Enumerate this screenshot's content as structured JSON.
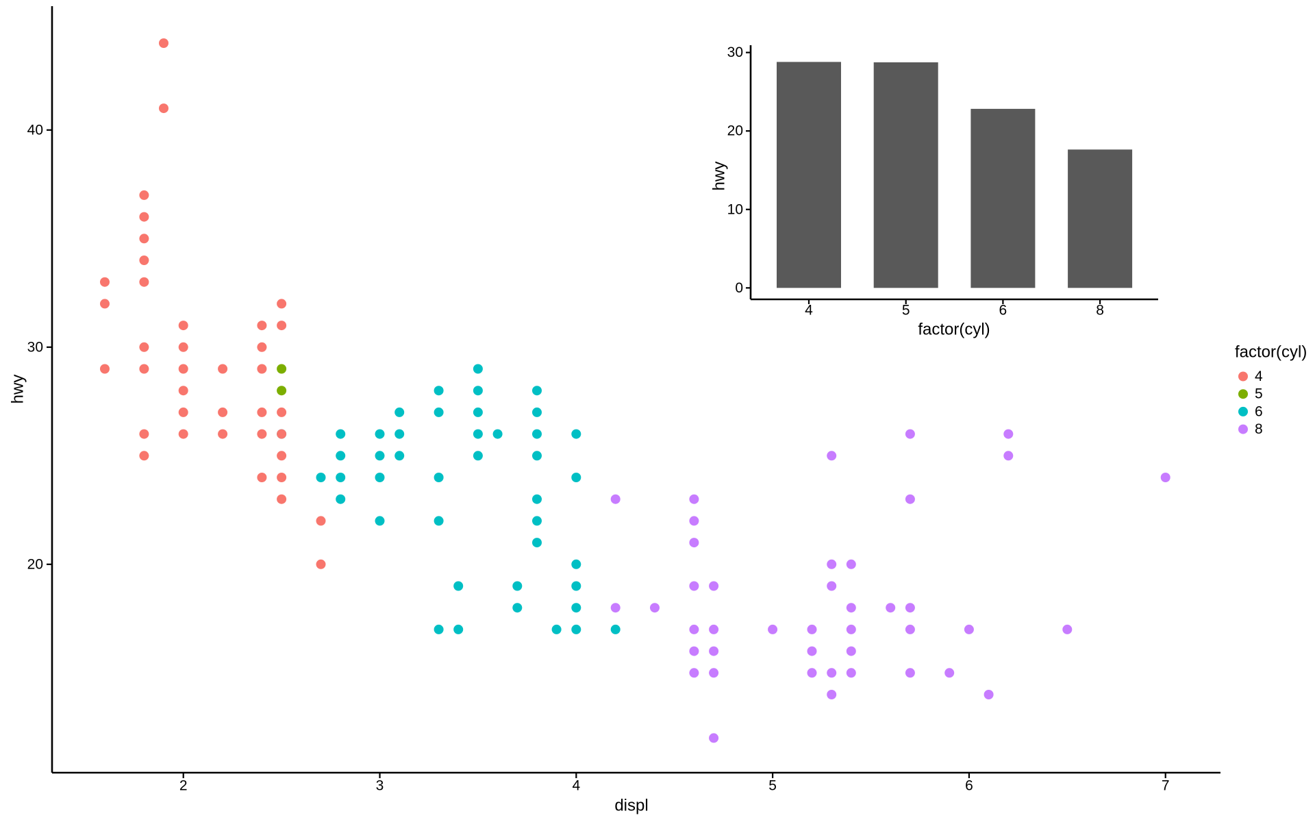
{
  "window": {
    "background": "#ffffff"
  },
  "colors": {
    "cyl4": "#F8766D",
    "cyl5": "#7CAE00",
    "cyl6": "#00BFC4",
    "cyl8": "#C77CFF",
    "bar_fill": "#595959",
    "axis_line": "#000000",
    "text": "#000000"
  },
  "legend": {
    "title": "factor(cyl)",
    "position": "right",
    "entries": [
      {
        "label": "4",
        "color": "#F8766D"
      },
      {
        "label": "5",
        "color": "#7CAE00"
      },
      {
        "label": "6",
        "color": "#00BFC4"
      },
      {
        "label": "8",
        "color": "#C77CFF"
      }
    ]
  },
  "chart_data": [
    {
      "id": "main-scatter",
      "type": "scatter",
      "title": "",
      "xlabel": "displ",
      "ylabel": "hwy",
      "x_ticks": [
        "2",
        "3",
        "4",
        "5",
        "6",
        "7"
      ],
      "y_ticks": [
        "20",
        "30",
        "40"
      ],
      "xlim": [
        1.33,
        7.27
      ],
      "ylim": [
        10.4,
        45.7
      ],
      "grid": false,
      "color_by": "factor(cyl)",
      "series": [
        {
          "name": "6",
          "color": "#00BFC4",
          "points": [
            [
              2.5,
              26
            ],
            [
              2.7,
              24
            ],
            [
              2.8,
              26
            ],
            [
              2.8,
              25
            ],
            [
              2.8,
              24
            ],
            [
              2.8,
              23
            ],
            [
              3.0,
              26
            ],
            [
              3.0,
              25
            ],
            [
              3.0,
              24
            ],
            [
              3.0,
              22
            ],
            [
              3.1,
              27
            ],
            [
              3.1,
              26
            ],
            [
              3.1,
              25
            ],
            [
              3.3,
              28
            ],
            [
              3.3,
              27
            ],
            [
              3.3,
              24
            ],
            [
              3.3,
              22
            ],
            [
              3.3,
              17
            ],
            [
              3.4,
              19
            ],
            [
              3.4,
              17
            ],
            [
              3.5,
              29
            ],
            [
              3.5,
              28
            ],
            [
              3.5,
              27
            ],
            [
              3.5,
              26
            ],
            [
              3.5,
              25
            ],
            [
              3.6,
              26
            ],
            [
              3.7,
              19
            ],
            [
              3.7,
              18
            ],
            [
              3.8,
              28
            ],
            [
              3.8,
              27
            ],
            [
              3.8,
              26
            ],
            [
              3.8,
              25
            ],
            [
              3.8,
              23
            ],
            [
              3.8,
              22
            ],
            [
              3.8,
              21
            ],
            [
              3.9,
              17
            ],
            [
              4.0,
              26
            ],
            [
              4.0,
              24
            ],
            [
              4.0,
              20
            ],
            [
              4.0,
              19
            ],
            [
              4.0,
              18
            ],
            [
              4.0,
              17
            ],
            [
              4.2,
              17
            ]
          ]
        },
        {
          "name": "4",
          "color": "#F8766D",
          "points": [
            [
              1.6,
              33
            ],
            [
              1.6,
              32
            ],
            [
              1.6,
              29
            ],
            [
              1.8,
              37
            ],
            [
              1.8,
              36
            ],
            [
              1.8,
              35
            ],
            [
              1.8,
              34
            ],
            [
              1.8,
              33
            ],
            [
              1.8,
              30
            ],
            [
              1.8,
              29
            ],
            [
              1.8,
              26
            ],
            [
              1.8,
              25
            ],
            [
              1.9,
              44
            ],
            [
              1.9,
              41
            ],
            [
              2.0,
              31
            ],
            [
              2.0,
              30
            ],
            [
              2.0,
              29
            ],
            [
              2.0,
              28
            ],
            [
              2.0,
              27
            ],
            [
              2.0,
              26
            ],
            [
              2.2,
              29
            ],
            [
              2.2,
              27
            ],
            [
              2.2,
              26
            ],
            [
              2.4,
              31
            ],
            [
              2.4,
              30
            ],
            [
              2.4,
              29
            ],
            [
              2.4,
              27
            ],
            [
              2.4,
              26
            ],
            [
              2.4,
              24
            ],
            [
              2.5,
              32
            ],
            [
              2.5,
              31
            ],
            [
              2.5,
              27
            ],
            [
              2.5,
              26
            ],
            [
              2.5,
              25
            ],
            [
              2.5,
              24
            ],
            [
              2.5,
              23
            ],
            [
              2.7,
              22
            ],
            [
              2.7,
              20
            ]
          ]
        },
        {
          "name": "5",
          "color": "#7CAE00",
          "points": [
            [
              2.5,
              29
            ],
            [
              2.5,
              28
            ]
          ]
        },
        {
          "name": "8",
          "color": "#C77CFF",
          "points": [
            [
              4.2,
              23
            ],
            [
              4.2,
              18
            ],
            [
              4.4,
              18
            ],
            [
              4.6,
              23
            ],
            [
              4.6,
              22
            ],
            [
              4.6,
              21
            ],
            [
              4.6,
              19
            ],
            [
              4.6,
              17
            ],
            [
              4.6,
              16
            ],
            [
              4.6,
              15
            ],
            [
              4.7,
              19
            ],
            [
              4.7,
              17
            ],
            [
              4.7,
              16
            ],
            [
              4.7,
              15
            ],
            [
              4.7,
              12
            ],
            [
              5.0,
              17
            ],
            [
              5.2,
              17
            ],
            [
              5.2,
              16
            ],
            [
              5.2,
              15
            ],
            [
              5.3,
              25
            ],
            [
              5.3,
              20
            ],
            [
              5.3,
              19
            ],
            [
              5.3,
              15
            ],
            [
              5.3,
              14
            ],
            [
              5.4,
              20
            ],
            [
              5.4,
              18
            ],
            [
              5.4,
              17
            ],
            [
              5.4,
              16
            ],
            [
              5.4,
              15
            ],
            [
              5.6,
              18
            ],
            [
              5.7,
              26
            ],
            [
              5.7,
              23
            ],
            [
              5.7,
              18
            ],
            [
              5.7,
              17
            ],
            [
              5.7,
              15
            ],
            [
              5.9,
              15
            ],
            [
              6.0,
              17
            ],
            [
              6.1,
              14
            ],
            [
              6.2,
              26
            ],
            [
              6.2,
              25
            ],
            [
              6.5,
              17
            ],
            [
              7.0,
              24
            ]
          ]
        }
      ]
    },
    {
      "id": "inset-bar",
      "type": "bar",
      "title": "",
      "xlabel": "factor(cyl)",
      "ylabel": "hwy",
      "categories": [
        "4",
        "5",
        "6",
        "8"
      ],
      "values": [
        28.8,
        28.75,
        22.82,
        17.63
      ],
      "y_ticks": [
        "0",
        "10",
        "20",
        "30"
      ],
      "ylim": [
        0,
        30
      ],
      "grid": false,
      "bar_fill": "#595959"
    }
  ]
}
